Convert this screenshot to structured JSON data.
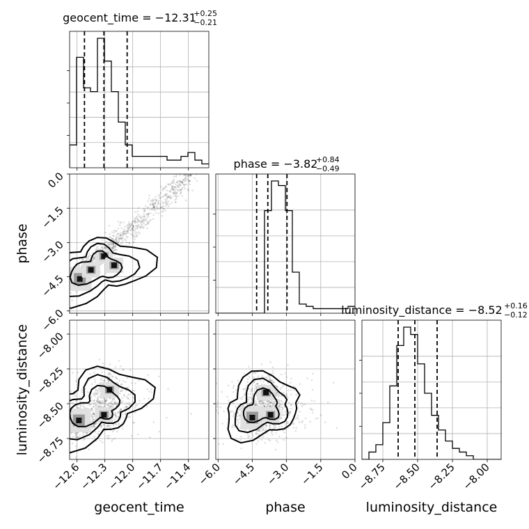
{
  "chart_data": {
    "type": "corner",
    "parameters": [
      "geocent_time",
      "phase",
      "luminosity_distance"
    ],
    "axis_labels": [
      "geocent_time",
      "phase",
      "luminosity_distance"
    ],
    "ranges": {
      "geocent_time": [
        -12.68,
        -11.18
      ],
      "phase": [
        -6.1,
        0.0
      ],
      "luminosity_distance": [
        -8.9,
        -7.9
      ]
    },
    "tick_labels": {
      "geocent_time": [
        "-12.6",
        "-12.3",
        "-12.0",
        "-11.7",
        "-11.4"
      ],
      "phase": [
        "-6.0",
        "-4.5",
        "-3.0",
        "-1.5",
        "0.0"
      ],
      "luminosity_distance": [
        "-8.75",
        "-8.50",
        "-8.25",
        "-8.00"
      ]
    },
    "titles": [
      {
        "param": "geocent_time",
        "text": "geocent_time = −12.31",
        "plus": "+0.25",
        "minus": "−0.21"
      },
      {
        "param": "phase",
        "text": "phase = −3.82",
        "plus": "+0.84",
        "minus": "−0.49"
      },
      {
        "param": "luminosity_distance",
        "text": "luminosity_distance = −8.52",
        "plus": "+0.16",
        "minus": "−0.12"
      }
    ],
    "quantiles": {
      "geocent_time": [
        -12.52,
        -12.31,
        -12.06
      ],
      "phase": [
        -4.31,
        -3.82,
        -2.98
      ],
      "luminosity_distance": [
        -8.64,
        -8.52,
        -8.36
      ]
    },
    "histograms": {
      "geocent_time": {
        "edges_start": -12.68,
        "bin_width": 0.075,
        "counts": [
          6,
          29,
          21,
          20,
          34,
          28,
          20,
          12,
          6,
          3,
          3,
          3,
          3,
          3,
          2,
          2,
          3,
          4,
          2,
          1
        ]
      },
      "phase": {
        "edges_start": -6.1,
        "bin_width": 0.305,
        "counts": [
          0,
          0,
          0,
          0,
          0,
          0,
          0,
          45,
          58,
          56,
          45,
          18,
          4,
          3,
          2,
          2,
          2,
          2,
          2,
          3
        ]
      },
      "luminosity_distance": {
        "edges_start": -8.9,
        "bin_width": 0.05,
        "counts": [
          0,
          2,
          4,
          10,
          20,
          31,
          36,
          34,
          26,
          18,
          12,
          8,
          5,
          3,
          2,
          1,
          0,
          0,
          0,
          0
        ]
      }
    },
    "peaks_2d": [
      {
        "x": "geocent_time",
        "y": "phase",
        "points": [
          [
            -12.57,
            -4.6
          ],
          [
            -12.31,
            -3.6
          ],
          [
            -12.45,
            -4.2
          ],
          [
            -12.2,
            -4.0
          ]
        ]
      },
      {
        "x": "geocent_time",
        "y": "luminosity_distance",
        "points": [
          [
            -12.58,
            -8.62
          ],
          [
            -12.31,
            -8.58
          ],
          [
            -12.25,
            -8.4
          ]
        ]
      },
      {
        "x": "phase",
        "y": "luminosity_distance",
        "points": [
          [
            -4.5,
            -8.6
          ],
          [
            -3.7,
            -8.58
          ],
          [
            -3.9,
            -8.42
          ]
        ]
      }
    ],
    "grid": true,
    "legend": "none"
  }
}
